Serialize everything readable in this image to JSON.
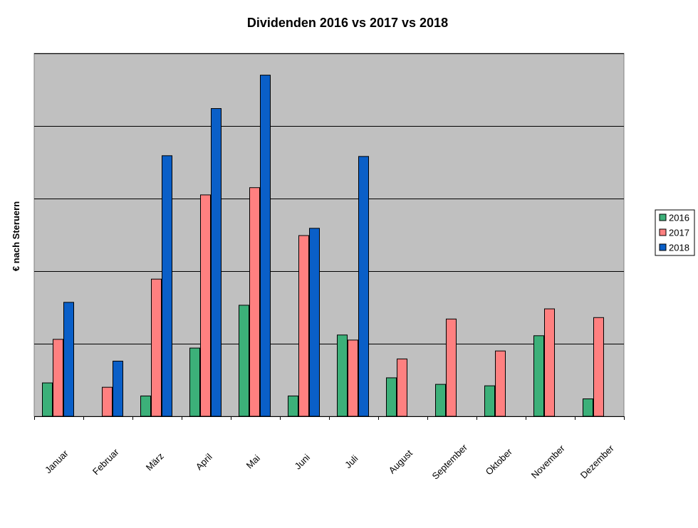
{
  "chart_data": {
    "type": "bar",
    "title": "Dividenden 2016 vs 2017 vs 2018",
    "xlabel": "",
    "ylabel": "€ nach Steruern",
    "categories": [
      "Januar",
      "Februar",
      "März",
      "April",
      "Mai",
      "Juni",
      "Juli",
      "August",
      "September",
      "Oktober",
      "November",
      "Dezember"
    ],
    "series": [
      {
        "name": "2016",
        "color": "#3cb079",
        "values": [
          0.46,
          null,
          0.28,
          0.94,
          1.53,
          0.28,
          1.12,
          0.53,
          0.44,
          0.42,
          1.11,
          0.24
        ]
      },
      {
        "name": "2017",
        "color": "#ff8080",
        "values": [
          1.06,
          0.4,
          1.89,
          3.05,
          3.15,
          2.49,
          1.05,
          0.79,
          1.34,
          0.9,
          1.48,
          1.36
        ]
      },
      {
        "name": "2018",
        "color": "#0a5fc8",
        "values": [
          1.57,
          0.76,
          3.59,
          4.24,
          4.7,
          2.59,
          3.58,
          null,
          null,
          null,
          null,
          null
        ]
      }
    ],
    "ylim": [
      0,
      5
    ],
    "yticks": [
      0,
      1,
      2,
      3,
      4,
      5
    ],
    "ytick_labels_visible": false,
    "grid": true,
    "plot_background": "#c0c0c0",
    "legend": "right"
  }
}
